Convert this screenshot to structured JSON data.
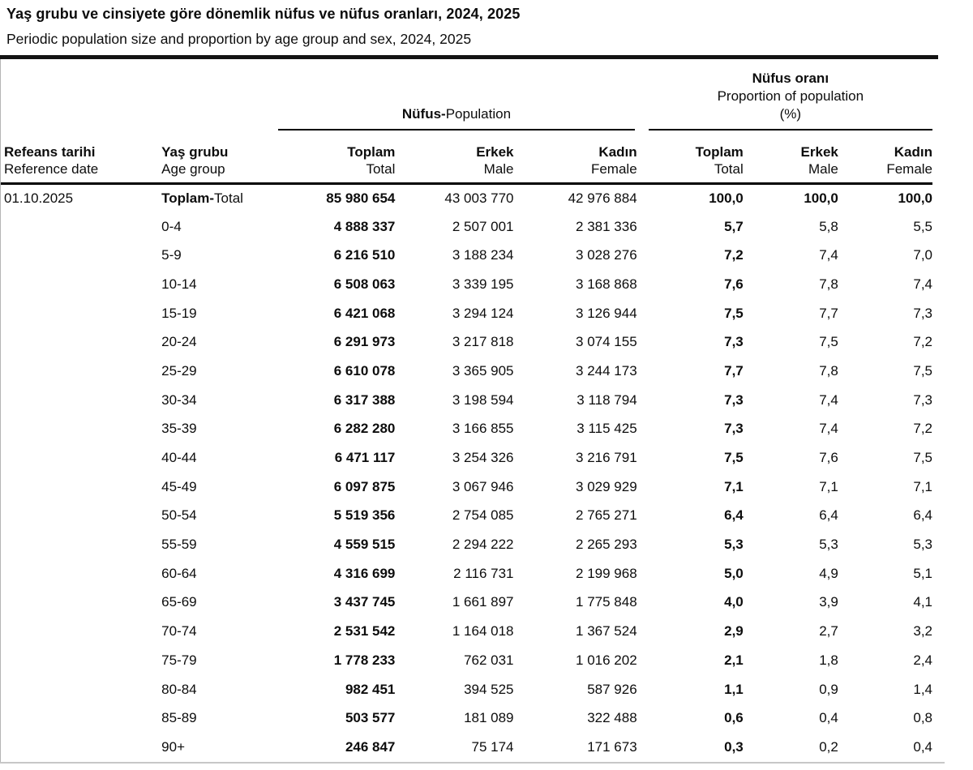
{
  "header": {
    "title": "Yaş grubu ve cinsiyete göre dönemlik nüfus ve nüfus oranları, 2024, 2025",
    "subtitle": "Periodic population size and proportion by age group and sex, 2024, 2025"
  },
  "table": {
    "group_headers": {
      "population_tr": "Nüfus-",
      "population_en": "Population",
      "proportion_tr": "Nüfus oranı",
      "proportion_en": "Proportion of population",
      "proportion_unit": "(%)"
    },
    "col_headers": {
      "ref_date_tr": "Refeans tarihi",
      "ref_date_en": "Reference date",
      "age_tr": "Yaş grubu",
      "age_en": "Age group",
      "total_tr": "Toplam",
      "total_en": "Total",
      "male_tr": "Erkek",
      "male_en": "Male",
      "female_tr": "Kadın",
      "female_en": "Female"
    },
    "rows": [
      {
        "ref_date": "01.10.2025",
        "age_bold": "Toplam-",
        "age": "Total",
        "is_total": true,
        "pop_total": "85 980 654",
        "pop_male": "43 003 770",
        "pop_female": "42 976 884",
        "prop_total": "100,0",
        "prop_male": "100,0",
        "prop_female": "100,0"
      },
      {
        "ref_date": "",
        "age_bold": "",
        "age": "0-4",
        "is_total": false,
        "pop_total": "4 888 337",
        "pop_male": "2 507 001",
        "pop_female": "2 381 336",
        "prop_total": "5,7",
        "prop_male": "5,8",
        "prop_female": "5,5"
      },
      {
        "ref_date": "",
        "age_bold": "",
        "age": "5-9",
        "is_total": false,
        "pop_total": "6 216 510",
        "pop_male": "3 188 234",
        "pop_female": "3 028 276",
        "prop_total": "7,2",
        "prop_male": "7,4",
        "prop_female": "7,0"
      },
      {
        "ref_date": "",
        "age_bold": "",
        "age": "10-14",
        "is_total": false,
        "pop_total": "6 508 063",
        "pop_male": "3 339 195",
        "pop_female": "3 168 868",
        "prop_total": "7,6",
        "prop_male": "7,8",
        "prop_female": "7,4"
      },
      {
        "ref_date": "",
        "age_bold": "",
        "age": "15-19",
        "is_total": false,
        "pop_total": "6 421 068",
        "pop_male": "3 294 124",
        "pop_female": "3 126 944",
        "prop_total": "7,5",
        "prop_male": "7,7",
        "prop_female": "7,3"
      },
      {
        "ref_date": "",
        "age_bold": "",
        "age": "20-24",
        "is_total": false,
        "pop_total": "6 291 973",
        "pop_male": "3 217 818",
        "pop_female": "3 074 155",
        "prop_total": "7,3",
        "prop_male": "7,5",
        "prop_female": "7,2"
      },
      {
        "ref_date": "",
        "age_bold": "",
        "age": "25-29",
        "is_total": false,
        "pop_total": "6 610 078",
        "pop_male": "3 365 905",
        "pop_female": "3 244 173",
        "prop_total": "7,7",
        "prop_male": "7,8",
        "prop_female": "7,5"
      },
      {
        "ref_date": "",
        "age_bold": "",
        "age": "30-34",
        "is_total": false,
        "pop_total": "6 317 388",
        "pop_male": "3 198 594",
        "pop_female": "3 118 794",
        "prop_total": "7,3",
        "prop_male": "7,4",
        "prop_female": "7,3"
      },
      {
        "ref_date": "",
        "age_bold": "",
        "age": "35-39",
        "is_total": false,
        "pop_total": "6 282 280",
        "pop_male": "3 166 855",
        "pop_female": "3 115 425",
        "prop_total": "7,3",
        "prop_male": "7,4",
        "prop_female": "7,2"
      },
      {
        "ref_date": "",
        "age_bold": "",
        "age": "40-44",
        "is_total": false,
        "pop_total": "6 471 117",
        "pop_male": "3 254 326",
        "pop_female": "3 216 791",
        "prop_total": "7,5",
        "prop_male": "7,6",
        "prop_female": "7,5"
      },
      {
        "ref_date": "",
        "age_bold": "",
        "age": "45-49",
        "is_total": false,
        "pop_total": "6 097 875",
        "pop_male": "3 067 946",
        "pop_female": "3 029 929",
        "prop_total": "7,1",
        "prop_male": "7,1",
        "prop_female": "7,1"
      },
      {
        "ref_date": "",
        "age_bold": "",
        "age": "50-54",
        "is_total": false,
        "pop_total": "5 519 356",
        "pop_male": "2 754 085",
        "pop_female": "2 765 271",
        "prop_total": "6,4",
        "prop_male": "6,4",
        "prop_female": "6,4"
      },
      {
        "ref_date": "",
        "age_bold": "",
        "age": "55-59",
        "is_total": false,
        "pop_total": "4 559 515",
        "pop_male": "2 294 222",
        "pop_female": "2 265 293",
        "prop_total": "5,3",
        "prop_male": "5,3",
        "prop_female": "5,3"
      },
      {
        "ref_date": "",
        "age_bold": "",
        "age": "60-64",
        "is_total": false,
        "pop_total": "4 316 699",
        "pop_male": "2 116 731",
        "pop_female": "2 199 968",
        "prop_total": "5,0",
        "prop_male": "4,9",
        "prop_female": "5,1"
      },
      {
        "ref_date": "",
        "age_bold": "",
        "age": "65-69",
        "is_total": false,
        "pop_total": "3 437 745",
        "pop_male": "1 661 897",
        "pop_female": "1 775 848",
        "prop_total": "4,0",
        "prop_male": "3,9",
        "prop_female": "4,1"
      },
      {
        "ref_date": "",
        "age_bold": "",
        "age": "70-74",
        "is_total": false,
        "pop_total": "2 531 542",
        "pop_male": "1 164 018",
        "pop_female": "1 367 524",
        "prop_total": "2,9",
        "prop_male": "2,7",
        "prop_female": "3,2"
      },
      {
        "ref_date": "",
        "age_bold": "",
        "age": "75-79",
        "is_total": false,
        "pop_total": "1 778 233",
        "pop_male": "762 031",
        "pop_female": "1 016 202",
        "prop_total": "2,1",
        "prop_male": "1,8",
        "prop_female": "2,4"
      },
      {
        "ref_date": "",
        "age_bold": "",
        "age": "80-84",
        "is_total": false,
        "pop_total": "982 451",
        "pop_male": "394 525",
        "pop_female": "587 926",
        "prop_total": "1,1",
        "prop_male": "0,9",
        "prop_female": "1,4"
      },
      {
        "ref_date": "",
        "age_bold": "",
        "age": "85-89",
        "is_total": false,
        "pop_total": "503 577",
        "pop_male": "181 089",
        "pop_female": "322 488",
        "prop_total": "0,6",
        "prop_male": "0,4",
        "prop_female": "0,8"
      },
      {
        "ref_date": "",
        "age_bold": "",
        "age": "90+",
        "is_total": false,
        "pop_total": "246 847",
        "pop_male": "75 174",
        "pop_female": "171 673",
        "prop_total": "0,3",
        "prop_male": "0,2",
        "prop_female": "0,4"
      }
    ]
  },
  "colors": {
    "text": "#0d0d0d",
    "rule_heavy": "#131313",
    "rule_light": "#c7c7c7",
    "border_faint": "#b5b5b5",
    "background": "#ffffff"
  }
}
